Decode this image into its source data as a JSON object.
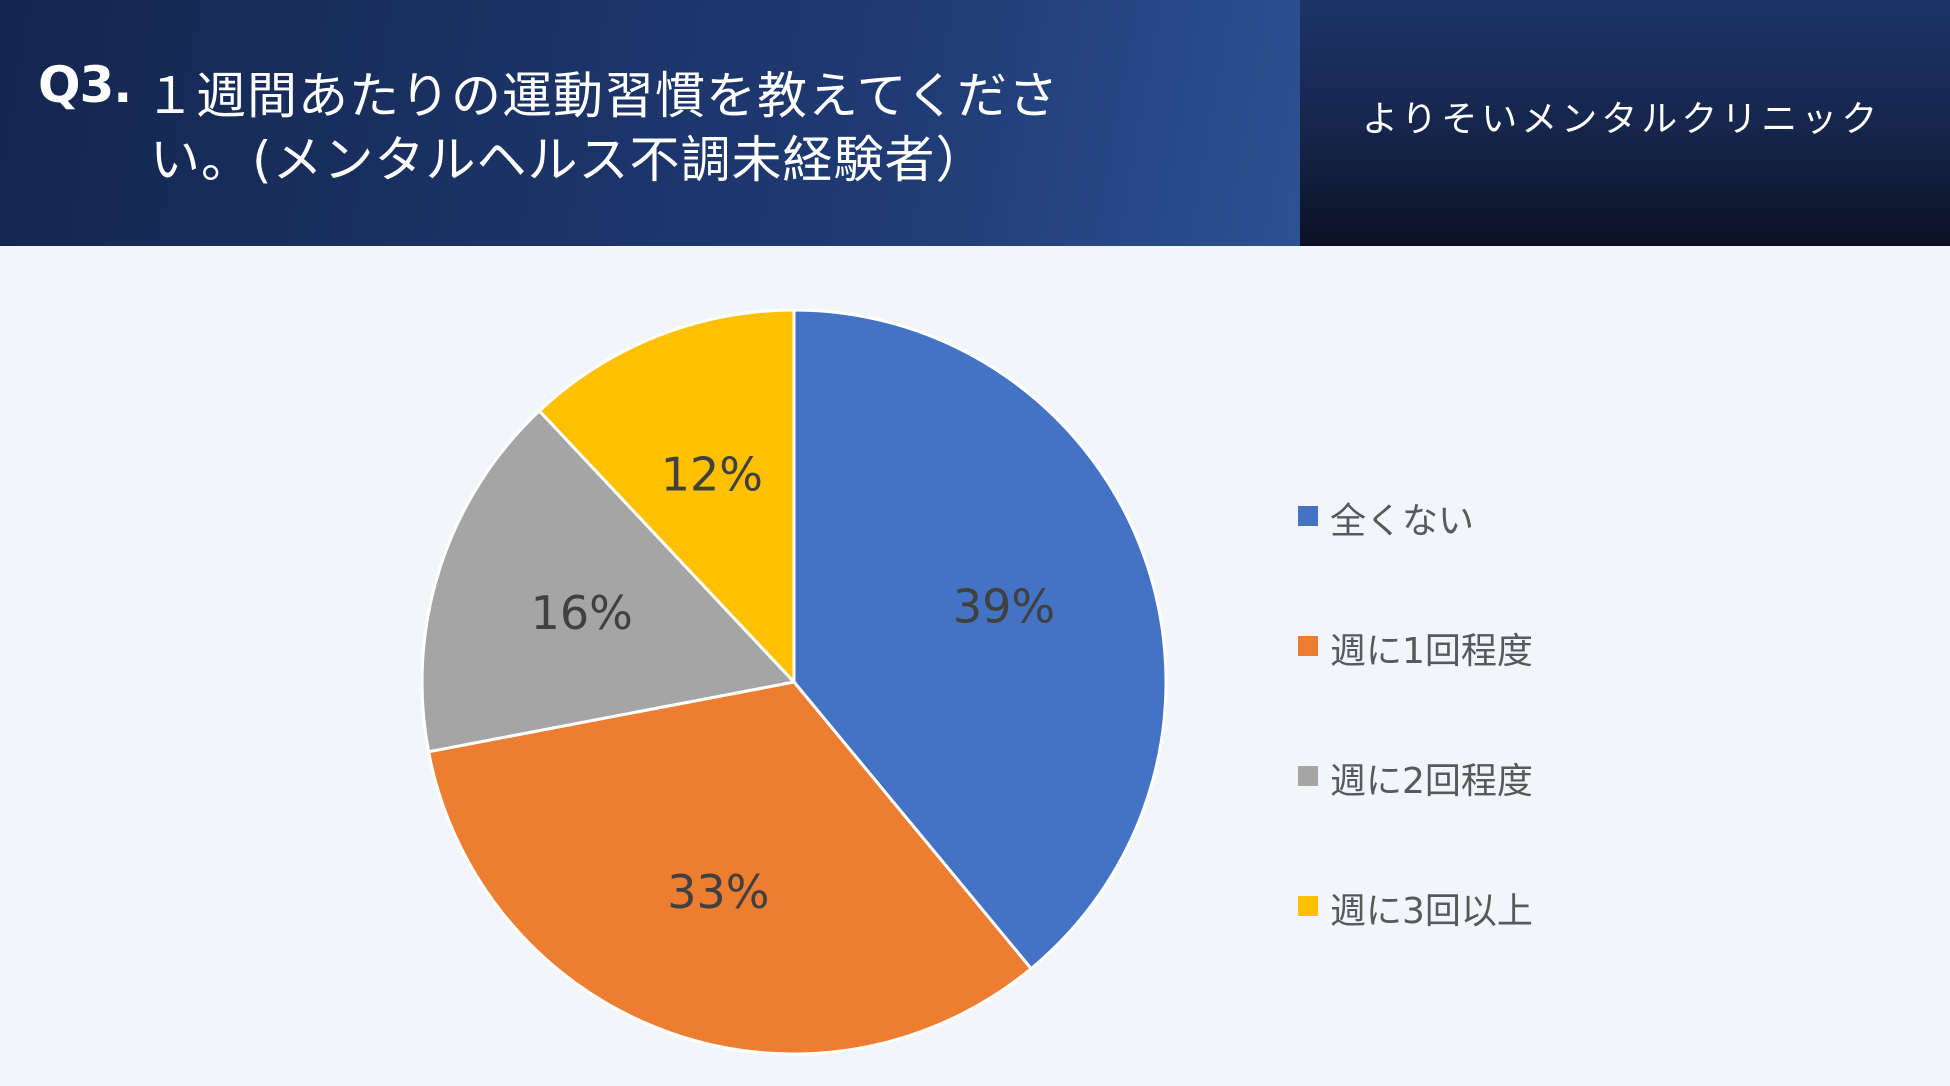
{
  "header": {
    "title_prefix": "Q3.",
    "title_line1": "１週間あたりの運動習慣を教えてくださ",
    "title_line2": "い。(メンタルヘルス不調未経験者）",
    "brand": "よりそいメンタルクリニック"
  },
  "chart_data": {
    "type": "pie",
    "categories": [
      "全くない",
      "週に1回程度",
      "週に2回程度",
      "週に3回以上"
    ],
    "values": [
      39,
      33,
      16,
      12
    ],
    "labels": [
      "39%",
      "33%",
      "16%",
      "12%"
    ],
    "colors": [
      "#4472c4",
      "#ed7d31",
      "#a5a5a5",
      "#ffc000"
    ],
    "legend_position": "right"
  }
}
